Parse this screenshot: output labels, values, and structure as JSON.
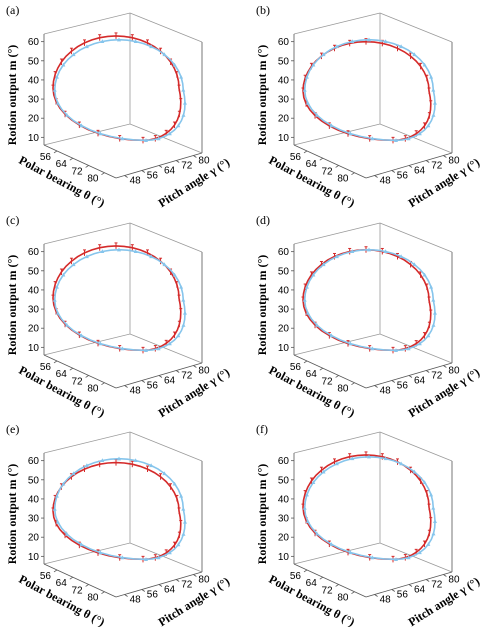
{
  "figure": {
    "panel_labels": [
      "(a)",
      "(b)",
      "(c)",
      "(d)",
      "(e)",
      "(f)"
    ]
  },
  "axes": {
    "z_label": "Rotion output m (°)",
    "x_label": "Polar bearing θ (°)",
    "y_label": "Pitch angle γ (°)",
    "z_ticks": [
      "10",
      "20",
      "30",
      "40",
      "50",
      "60"
    ],
    "x_ticks": [
      "56",
      "64",
      "72",
      "80"
    ],
    "y_ticks": [
      "48",
      "56",
      "64",
      "72",
      "80"
    ]
  },
  "colors": {
    "red_series": "#d42a2a",
    "blue_series": "#86c5ec",
    "axis": "#555555",
    "grid": "#9a9a9a"
  },
  "chart_data": [
    {
      "type": "line",
      "panel": "(a)",
      "xlabel": "Polar bearing θ (°)",
      "ylabel": "Pitch angle γ (°)",
      "zlabel": "Rotion output m (°)",
      "zlim": [
        6,
        64
      ],
      "series": [
        {
          "name": "",
          "color": "#d42a2a",
          "marker": "error-bar",
          "loop": {
            "z_top": 63,
            "z_bottom": 10
          }
        },
        {
          "name": "",
          "color": "#86c5ec",
          "marker": "triangle",
          "loop": {
            "z_top": 61,
            "z_bottom": 10
          }
        }
      ]
    },
    {
      "type": "line",
      "panel": "(b)",
      "xlabel": "Polar bearing θ (°)",
      "ylabel": "Pitch angle γ (°)",
      "zlabel": "Rotion output m (°)",
      "zlim": [
        6,
        64
      ],
      "series": [
        {
          "name": "",
          "color": "#d42a2a",
          "marker": "error-bar",
          "loop": {
            "z_top": 60,
            "z_bottom": 10
          }
        },
        {
          "name": "",
          "color": "#86c5ec",
          "marker": "triangle",
          "loop": {
            "z_top": 61,
            "z_bottom": 10
          }
        }
      ]
    },
    {
      "type": "line",
      "panel": "(c)",
      "xlabel": "Polar bearing θ (°)",
      "ylabel": "Pitch angle γ (°)",
      "zlabel": "Rotion output m (°)",
      "zlim": [
        6,
        64
      ],
      "series": [
        {
          "name": "",
          "color": "#d42a2a",
          "marker": "error-bar",
          "loop": {
            "z_top": 63,
            "z_bottom": 10
          }
        },
        {
          "name": "",
          "color": "#86c5ec",
          "marker": "triangle",
          "loop": {
            "z_top": 61,
            "z_bottom": 10
          }
        }
      ]
    },
    {
      "type": "line",
      "panel": "(d)",
      "xlabel": "Polar bearing θ (°)",
      "ylabel": "Pitch angle γ (°)",
      "zlabel": "Rotion output m (°)",
      "zlim": [
        6,
        64
      ],
      "series": [
        {
          "name": "",
          "color": "#d42a2a",
          "marker": "error-bar",
          "loop": {
            "z_top": 61,
            "z_bottom": 10
          }
        },
        {
          "name": "",
          "color": "#86c5ec",
          "marker": "triangle",
          "loop": {
            "z_top": 61,
            "z_bottom": 10
          }
        }
      ]
    },
    {
      "type": "line",
      "panel": "(e)",
      "xlabel": "Polar bearing θ (°)",
      "ylabel": "Pitch angle γ (°)",
      "zlabel": "Rotion output m (°)",
      "zlim": [
        6,
        64
      ],
      "series": [
        {
          "name": "",
          "color": "#d42a2a",
          "marker": "error-bar",
          "loop": {
            "z_top": 59,
            "z_bottom": 10
          }
        },
        {
          "name": "",
          "color": "#86c5ec",
          "marker": "triangle",
          "loop": {
            "z_top": 61,
            "z_bottom": 10
          }
        }
      ]
    },
    {
      "type": "line",
      "panel": "(f)",
      "xlabel": "Polar bearing θ (°)",
      "ylabel": "Pitch angle γ (°)",
      "zlabel": "Rotion output m (°)",
      "zlim": [
        6,
        64
      ],
      "series": [
        {
          "name": "",
          "color": "#d42a2a",
          "marker": "error-bar",
          "loop": {
            "z_top": 63,
            "z_bottom": 10
          }
        },
        {
          "name": "",
          "color": "#86c5ec",
          "marker": "triangle",
          "loop": {
            "z_top": 62,
            "z_bottom": 10
          }
        }
      ]
    }
  ]
}
